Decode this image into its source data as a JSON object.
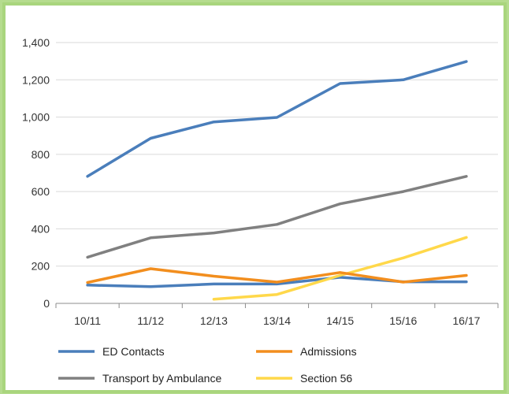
{
  "chart_data": {
    "type": "line",
    "title": "",
    "xlabel": "",
    "ylabel": "",
    "categories": [
      "10/11",
      "11/12",
      "12/13",
      "13/14",
      "14/15",
      "15/16",
      "16/17"
    ],
    "ylim": [
      0,
      1400
    ],
    "yticks": [
      0,
      200,
      400,
      600,
      800,
      1000,
      1200,
      1400
    ],
    "ytick_labels": [
      "0",
      "200",
      "400",
      "600",
      "800",
      "1,000",
      "1,200",
      "1,400"
    ],
    "grid": true,
    "legend_position": "bottom",
    "series": [
      {
        "name": "ED Contacts",
        "color": "#4a7ebb",
        "values": [
          682,
          886,
          974,
          998,
          1180,
          1200,
          1298
        ]
      },
      {
        "name": "Admissions",
        "color": "#f28e1e",
        "values": [
          112,
          186,
          146,
          114,
          166,
          114,
          150
        ]
      },
      {
        "name": "Transport by Ambulance",
        "color": "#808080",
        "values": [
          248,
          352,
          378,
          424,
          534,
          600,
          682
        ]
      },
      {
        "name": "Section 56",
        "color": "#ffd84a",
        "values": [
          null,
          null,
          22,
          48,
          150,
          244,
          354
        ]
      }
    ],
    "extra_lines": [
      {
        "color": "#4a7ebb",
        "values": [
          98,
          90,
          104,
          104,
          140,
          116,
          116
        ]
      }
    ]
  }
}
